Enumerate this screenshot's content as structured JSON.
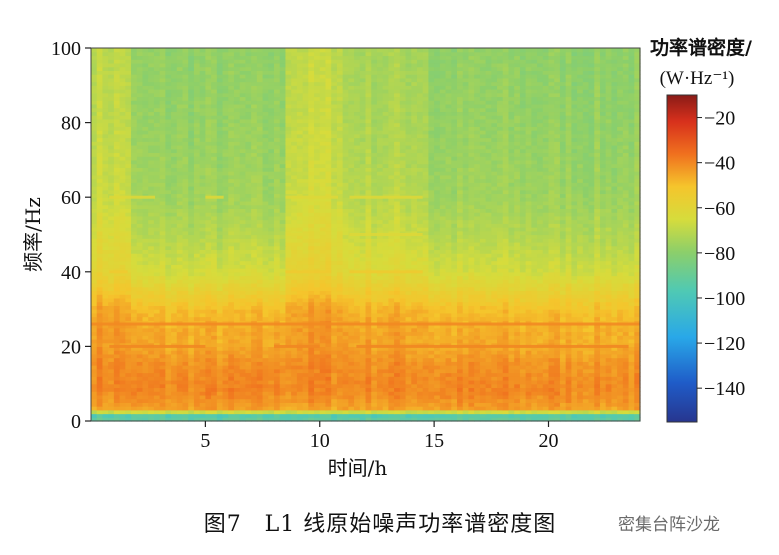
{
  "top_clip_text": "",
  "figure_caption": "图7　L1 线原始噪声功率谱密度图",
  "watermark_text": "密集台阵沙龙",
  "chart_data": {
    "type": "heatmap",
    "title": "",
    "xlabel": "时间/h",
    "ylabel": "频率/Hz",
    "xlim": [
      0,
      24
    ],
    "ylim": [
      0,
      100
    ],
    "x_ticks": [
      5,
      10,
      15,
      20
    ],
    "y_ticks": [
      0,
      20,
      40,
      60,
      80,
      100
    ],
    "colorbar": {
      "label_line1": "功率谱密度/",
      "label_line2": "(W·Hz⁻¹)",
      "range": [
        -155,
        -10
      ],
      "ticks": [
        -20,
        -40,
        -60,
        -80,
        -100,
        -120,
        -140
      ],
      "colormap": "jet"
    },
    "frequency_profile_db": [
      {
        "f": 0,
        "v": -85
      },
      {
        "f": 1,
        "v": -100
      },
      {
        "f": 2,
        "v": -90
      },
      {
        "f": 3,
        "v": -45
      },
      {
        "f": 8,
        "v": -40
      },
      {
        "f": 15,
        "v": -42
      },
      {
        "f": 20,
        "v": -46
      },
      {
        "f": 25,
        "v": -47
      },
      {
        "f": 30,
        "v": -50
      },
      {
        "f": 35,
        "v": -58
      },
      {
        "f": 40,
        "v": -66
      },
      {
        "f": 50,
        "v": -72
      },
      {
        "f": 60,
        "v": -76
      },
      {
        "f": 80,
        "v": -78
      },
      {
        "f": 100,
        "v": -79
      }
    ],
    "bright_hour_bands": [
      {
        "start": 0,
        "end": 1.8,
        "delta_db": 9
      },
      {
        "start": 8.5,
        "end": 11,
        "delta_db": 10
      },
      {
        "start": 11,
        "end": 14.8,
        "delta_db": 5
      }
    ],
    "harmonic_lines": [
      {
        "f": 60,
        "segments": [
          [
            0.8,
            2.8
          ],
          [
            5.0,
            5.8
          ],
          [
            8.5,
            10.8
          ],
          [
            11.3,
            14.5
          ]
        ],
        "delta_db": 14
      },
      {
        "f": 50,
        "segments": [
          [
            0.8,
            1.6
          ],
          [
            8.5,
            9.5
          ],
          [
            11.3,
            14.5
          ]
        ],
        "delta_db": 10
      },
      {
        "f": 40,
        "segments": [
          [
            0.8,
            1.6
          ],
          [
            8.5,
            10.5
          ],
          [
            11.3,
            14.5
          ]
        ],
        "delta_db": 12
      },
      {
        "f": 26,
        "segments": [
          [
            0,
            24
          ]
        ],
        "delta_db": 7
      },
      {
        "f": 20,
        "segments": [
          [
            0.8,
            5.0
          ],
          [
            8.0,
            10.0
          ],
          [
            11.6,
            23.5
          ]
        ],
        "delta_db": 6
      }
    ]
  }
}
